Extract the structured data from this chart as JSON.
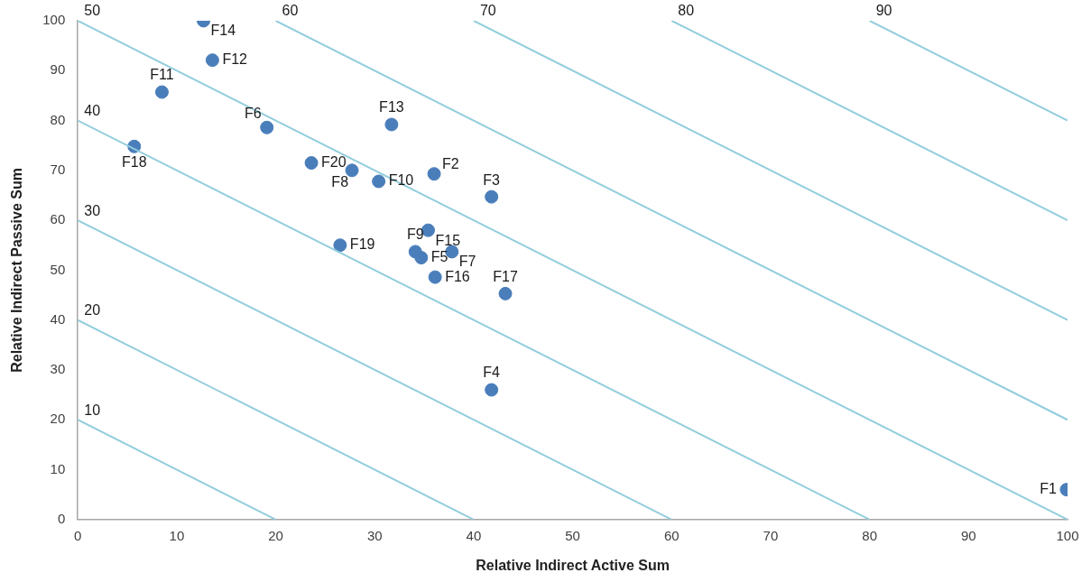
{
  "chart_data": {
    "type": "scatter",
    "xlabel": "Relative Indirect Active Sum",
    "ylabel": "Relative Indirect Passive Sum",
    "xlim": [
      0,
      100
    ],
    "ylim": [
      0,
      100
    ],
    "xticks": [
      0,
      10,
      20,
      30,
      40,
      50,
      60,
      70,
      80,
      90,
      100
    ],
    "yticks": [
      0,
      10,
      20,
      30,
      40,
      50,
      60,
      70,
      80,
      90,
      100
    ],
    "grid": false,
    "legend": false,
    "marker": "circle",
    "series": [
      {
        "type": "line",
        "marker": "none",
        "color": "#93cddd",
        "x": [
          0,
          20
        ],
        "values": [
          20,
          0
        ]
      },
      {
        "type": "line",
        "marker": "none",
        "color": "#93cddd",
        "x": [
          0,
          40
        ],
        "values": [
          40,
          0
        ]
      },
      {
        "type": "line",
        "marker": "none",
        "color": "#93cddd",
        "x": [
          0,
          60
        ],
        "values": [
          60,
          0
        ]
      },
      {
        "type": "line",
        "marker": "none",
        "color": "#93cddd",
        "x": [
          0,
          80
        ],
        "values": [
          80,
          0
        ]
      },
      {
        "type": "line",
        "marker": "none",
        "color": "#93cddd",
        "x": [
          0,
          100
        ],
        "values": [
          100,
          0
        ]
      },
      {
        "type": "line",
        "marker": "none",
        "color": "#93cddd",
        "x": [
          20,
          100
        ],
        "values": [
          100,
          20
        ]
      },
      {
        "type": "line",
        "marker": "none",
        "color": "#93cddd",
        "x": [
          40,
          100
        ],
        "values": [
          100,
          40
        ]
      },
      {
        "type": "line",
        "marker": "none",
        "color": "#93cddd",
        "x": [
          60,
          100
        ],
        "values": [
          100,
          60
        ]
      },
      {
        "type": "line",
        "marker": "none",
        "color": "#93cddd",
        "x": [
          80,
          100
        ],
        "values": [
          100,
          80
        ]
      },
      {
        "color": "#4a7ebb",
        "x": [
          99.9,
          36.0,
          41.8,
          41.8,
          34.7,
          19.1,
          37.8,
          27.7,
          34.1,
          30.4,
          8.5,
          13.6,
          31.7,
          12.7,
          35.4,
          36.1,
          43.2,
          5.7,
          26.5,
          23.6
        ],
        "values": [
          6.0,
          69.3,
          64.7,
          26.0,
          52.5,
          78.6,
          53.7,
          70.0,
          53.7,
          67.8,
          85.7,
          92.1,
          79.2,
          100,
          58.0,
          48.6,
          45.3,
          74.8,
          55.0,
          71.5
        ],
        "value_labels": [
          "F1",
          "F2",
          "F3",
          "F4",
          "F5",
          "F6",
          "F7",
          "F8",
          "F9",
          "F10",
          "F11",
          "F12",
          "F13",
          "F14",
          "F15",
          "F16",
          "F17",
          "F18",
          "F19",
          "F20"
        ]
      }
    ],
    "annotations": [
      {
        "text": "10",
        "x": 0,
        "y": 20
      },
      {
        "text": "20",
        "x": 0,
        "y": 40
      },
      {
        "text": "30",
        "x": 0,
        "y": 60
      },
      {
        "text": "40",
        "x": 0,
        "y": 80
      },
      {
        "text": "50",
        "x": 0,
        "y": 100
      },
      {
        "text": "60",
        "x": 20,
        "y": 100
      },
      {
        "text": "70",
        "x": 40,
        "y": 100
      },
      {
        "text": "80",
        "x": 60,
        "y": 100
      },
      {
        "text": "90",
        "x": 80,
        "y": 100
      }
    ]
  }
}
